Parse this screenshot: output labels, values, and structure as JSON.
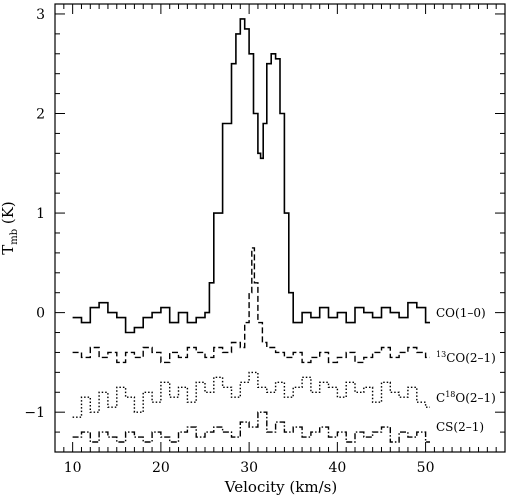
{
  "chart_data": {
    "type": "line",
    "title": "",
    "xlabel": "Velocity (km/s)",
    "ylabel": {
      "main": "T",
      "sub": "mb",
      "suffix": " (K)"
    },
    "xlim": [
      8,
      59
    ],
    "ylim": [
      -1.4,
      3.1
    ],
    "x_ticks": [
      10,
      20,
      30,
      40,
      50
    ],
    "y_ticks": [
      3,
      2,
      1,
      0,
      -1
    ],
    "grid": false,
    "series": [
      {
        "name": "CO(1-0)",
        "line": "solid",
        "x": [
          10,
          11,
          12,
          13,
          14,
          15,
          16,
          17,
          18,
          19,
          20,
          21,
          22,
          23,
          24,
          25,
          25.5,
          26,
          27,
          28,
          28.5,
          29,
          29.5,
          30,
          30.5,
          31,
          31.3,
          31.6,
          32,
          32.5,
          33,
          33.5,
          34,
          34.5,
          35,
          36,
          37,
          38,
          39,
          40,
          41,
          42,
          43,
          44,
          45,
          46,
          47,
          48,
          49,
          50
        ],
        "y": [
          -0.05,
          -0.1,
          0.05,
          0.1,
          0.0,
          -0.05,
          -0.2,
          -0.15,
          -0.05,
          0.0,
          0.05,
          -0.1,
          0.0,
          -0.1,
          -0.05,
          0.0,
          0.3,
          1.0,
          1.9,
          2.5,
          2.8,
          2.95,
          2.85,
          2.6,
          2.0,
          1.6,
          1.55,
          1.9,
          2.5,
          2.6,
          2.55,
          2.0,
          1.0,
          0.2,
          -0.1,
          0.0,
          -0.05,
          0.05,
          -0.05,
          0.0,
          -0.1,
          0.05,
          0.0,
          -0.05,
          0.05,
          0.0,
          -0.05,
          0.1,
          0.05,
          -0.1
        ]
      },
      {
        "name": "13CO(2-1)",
        "label": {
          "sup": "13",
          "text": "CO(2–1)"
        },
        "line": "dashed",
        "x": [
          10,
          11,
          12,
          13,
          14,
          15,
          16,
          17,
          18,
          19,
          20,
          21,
          22,
          23,
          24,
          25,
          26,
          27,
          28,
          29,
          29.5,
          30,
          30.3,
          30.6,
          31,
          31.5,
          32,
          33,
          34,
          35,
          36,
          37,
          38,
          39,
          40,
          41,
          42,
          43,
          44,
          45,
          46,
          47,
          48,
          49,
          50
        ],
        "y": [
          -0.4,
          -0.45,
          -0.35,
          -0.45,
          -0.4,
          -0.5,
          -0.4,
          -0.45,
          -0.35,
          -0.4,
          -0.5,
          -0.4,
          -0.45,
          -0.35,
          -0.4,
          -0.45,
          -0.35,
          -0.4,
          -0.3,
          -0.35,
          -0.1,
          0.2,
          0.65,
          0.3,
          -0.1,
          -0.3,
          -0.35,
          -0.4,
          -0.45,
          -0.4,
          -0.5,
          -0.45,
          -0.4,
          -0.5,
          -0.45,
          -0.4,
          -0.5,
          -0.45,
          -0.4,
          -0.35,
          -0.45,
          -0.4,
          -0.35,
          -0.4,
          -0.45
        ]
      },
      {
        "name": "C18O(2-1)",
        "label": {
          "pre": "C",
          "sup": "18",
          "text": "O(2–1)"
        },
        "line": "dotted",
        "x": [
          10,
          11,
          12,
          13,
          14,
          15,
          16,
          17,
          18,
          19,
          20,
          21,
          22,
          23,
          24,
          25,
          26,
          27,
          28,
          29,
          30,
          31,
          32,
          33,
          34,
          35,
          36,
          37,
          38,
          39,
          40,
          41,
          42,
          43,
          44,
          45,
          46,
          47,
          48,
          49,
          50
        ],
        "y": [
          -1.05,
          -0.85,
          -1.0,
          -0.8,
          -0.95,
          -0.75,
          -0.85,
          -1.0,
          -0.8,
          -0.9,
          -0.7,
          -0.85,
          -0.75,
          -0.9,
          -0.7,
          -0.8,
          -0.65,
          -0.75,
          -0.85,
          -0.7,
          -0.6,
          -0.75,
          -0.8,
          -0.7,
          -0.85,
          -0.75,
          -0.65,
          -0.8,
          -0.7,
          -0.75,
          -0.85,
          -0.7,
          -0.8,
          -0.75,
          -0.9,
          -0.7,
          -0.8,
          -0.85,
          -0.75,
          -0.9,
          -0.95
        ]
      },
      {
        "name": "CS(2-1)",
        "label": {
          "text": "CS(2–1)"
        },
        "line": "dashdot",
        "x": [
          10,
          11,
          12,
          13,
          14,
          15,
          16,
          17,
          18,
          19,
          20,
          21,
          22,
          23,
          24,
          25,
          26,
          27,
          28,
          29,
          30,
          31,
          32,
          33,
          34,
          35,
          36,
          37,
          38,
          39,
          40,
          41,
          42,
          43,
          44,
          45,
          46,
          47,
          48,
          49,
          50
        ],
        "y": [
          -1.25,
          -1.2,
          -1.3,
          -1.2,
          -1.25,
          -1.3,
          -1.2,
          -1.25,
          -1.3,
          -1.2,
          -1.25,
          -1.3,
          -1.2,
          -1.15,
          -1.25,
          -1.2,
          -1.15,
          -1.2,
          -1.25,
          -1.1,
          -1.15,
          -1.0,
          -1.2,
          -1.1,
          -1.2,
          -1.15,
          -1.25,
          -1.2,
          -1.15,
          -1.25,
          -1.2,
          -1.3,
          -1.2,
          -1.25,
          -1.2,
          -1.15,
          -1.3,
          -1.2,
          -1.25,
          -1.2,
          -1.3
        ]
      }
    ],
    "labels_text": {
      "co10": "CO(1–0)"
    }
  }
}
